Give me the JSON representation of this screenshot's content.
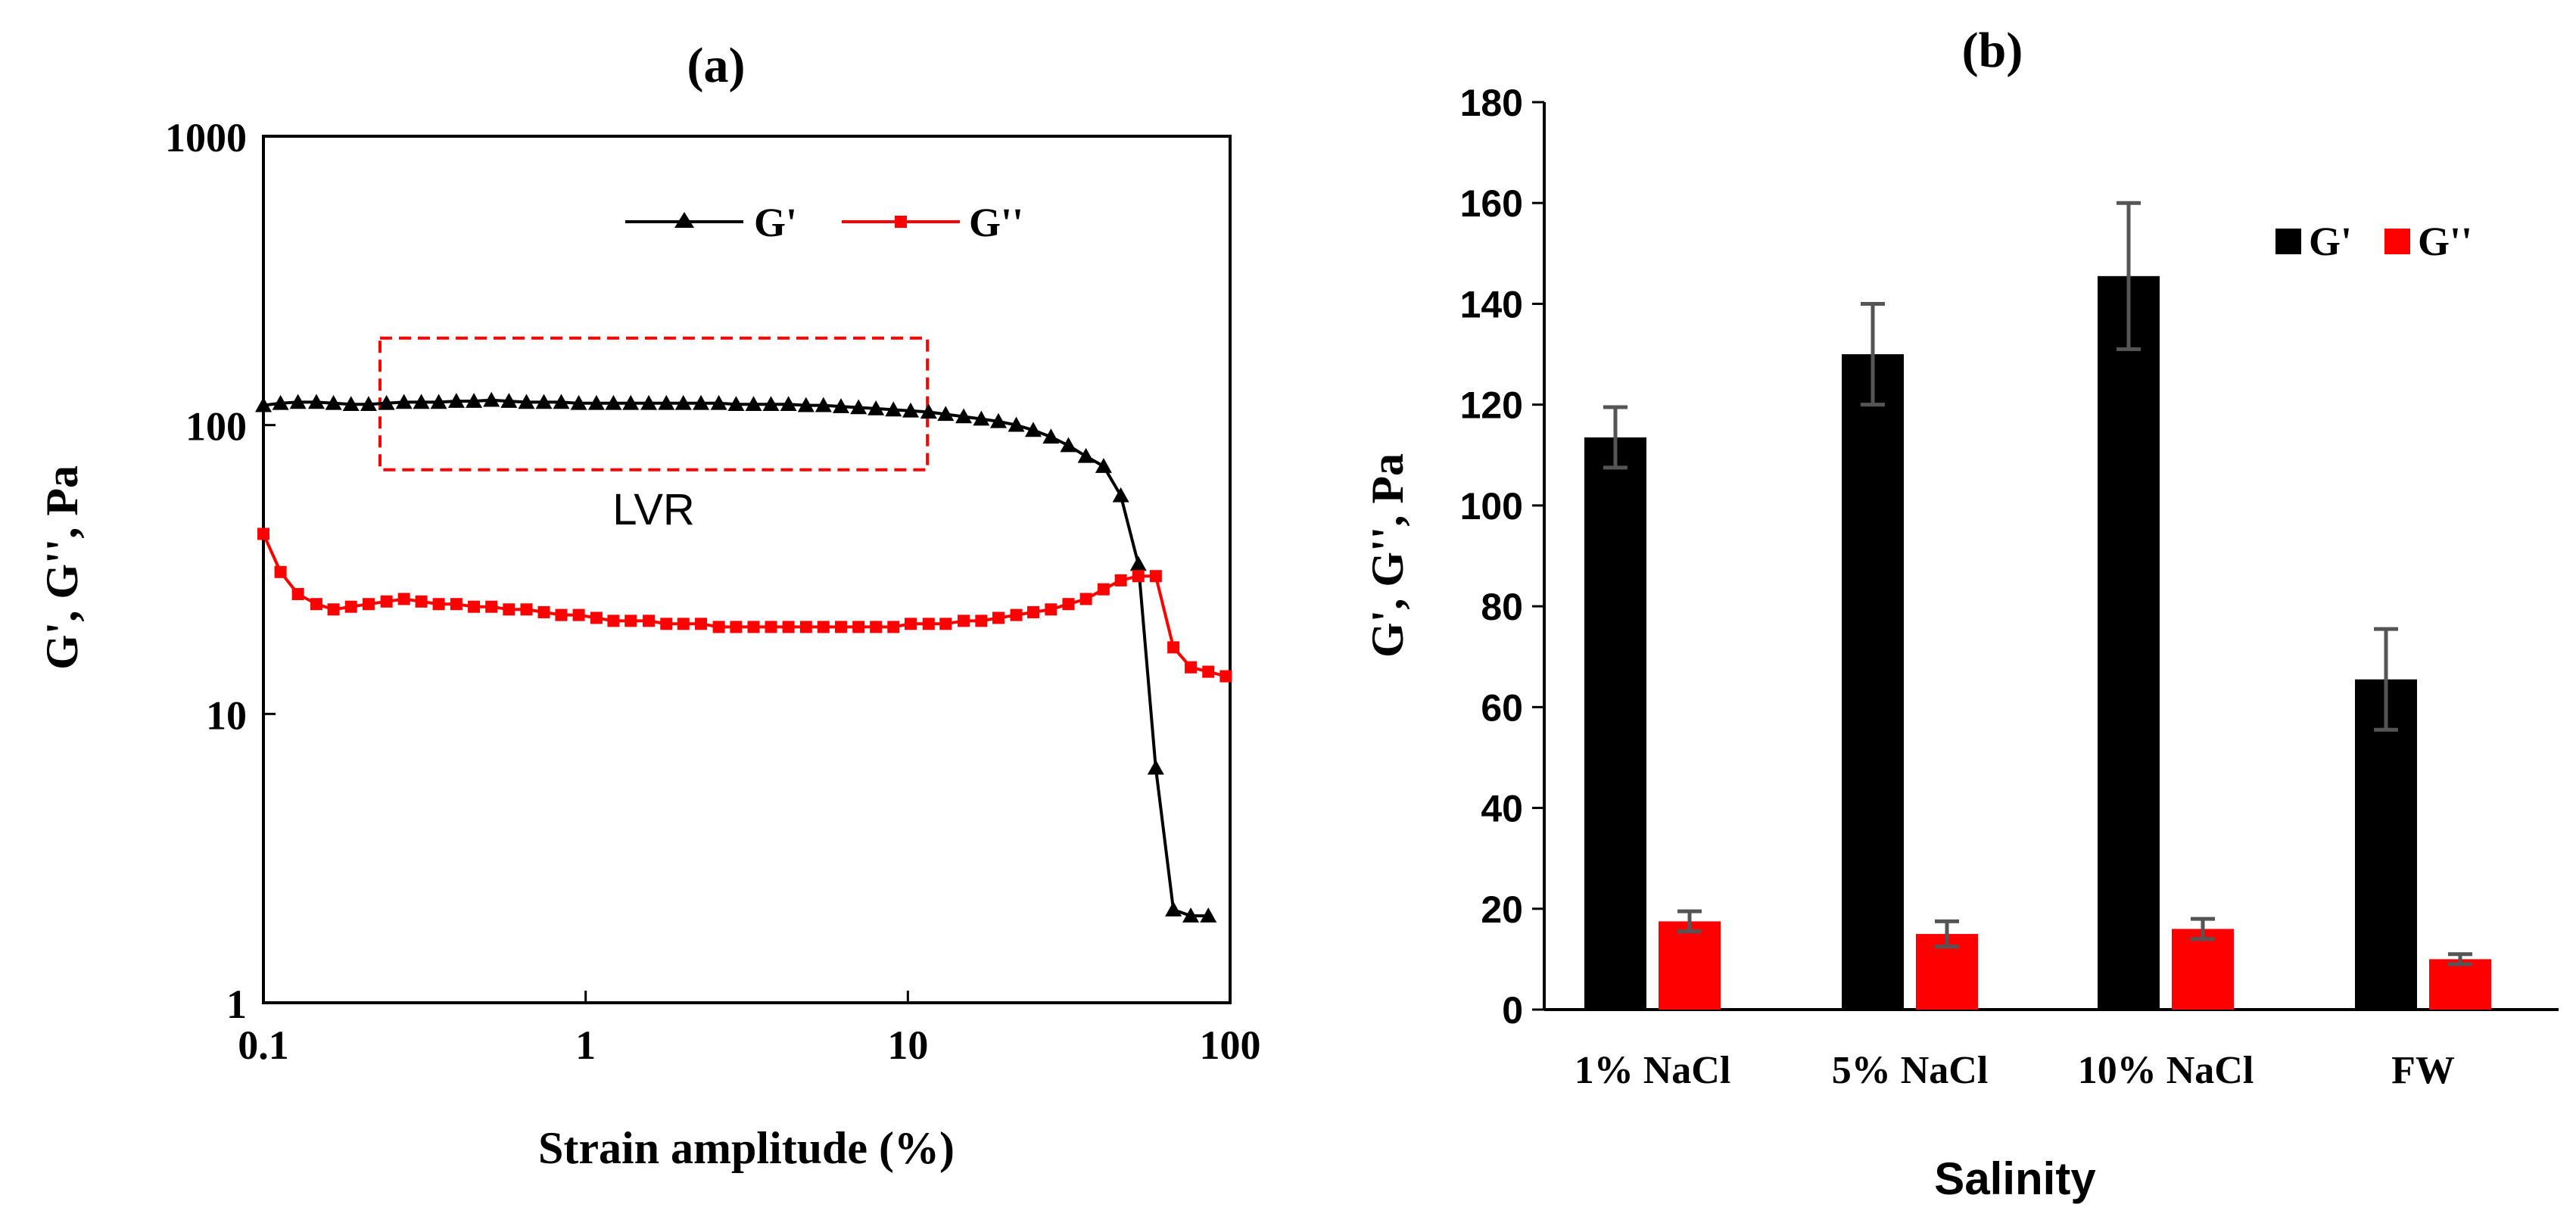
{
  "chart_data": [
    {
      "panel": "(a)",
      "type": "line",
      "title": "(a)",
      "xlabel": "Strain amplitude (%)",
      "ylabel": "G', G'', Pa",
      "xscale": "log",
      "yscale": "log",
      "xlim": [
        0.1,
        100
      ],
      "ylim": [
        1,
        1000
      ],
      "xticks": [
        "0.1",
        "1",
        "10",
        "100"
      ],
      "yticks": [
        "1",
        "10",
        "100",
        "1000"
      ],
      "grid": false,
      "legend_position": "top-right",
      "annotation": {
        "label": "LVR",
        "x_range": [
          0.23,
          11.5
        ],
        "y_range": [
          70,
          200
        ]
      },
      "series": [
        {
          "name": "G'",
          "color": "#000000",
          "marker": "triangle",
          "x": [
            0.1,
            0.113,
            0.128,
            0.146,
            0.165,
            0.187,
            0.212,
            0.241,
            0.273,
            0.309,
            0.35,
            0.397,
            0.45,
            0.51,
            0.578,
            0.655,
            0.742,
            0.84,
            0.952,
            1.08,
            1.22,
            1.38,
            1.57,
            1.78,
            2.01,
            2.28,
            2.59,
            2.93,
            3.32,
            3.76,
            4.26,
            4.83,
            5.47,
            6.2,
            7.03,
            7.96,
            9.02,
            10.2,
            11.6,
            13.1,
            14.9,
            16.9,
            19.1,
            21.7,
            24.5,
            27.8,
            31.5,
            35.7,
            40.5,
            45.8,
            51.9,
            58.8,
            66.7,
            75.5,
            85.6
          ],
          "y": [
            117,
            119,
            120,
            120,
            119,
            118,
            118,
            119,
            120,
            120,
            120,
            121,
            121,
            122,
            121,
            120,
            120,
            120,
            119,
            119,
            119,
            119,
            119,
            119,
            119,
            119,
            119,
            118,
            118,
            118,
            118,
            117,
            117,
            116,
            115,
            114,
            113,
            112,
            111,
            109,
            107,
            105,
            103,
            100,
            96,
            91,
            85,
            78,
            72,
            57,
            33,
            6.5,
            2.1,
            2.0,
            2.0
          ]
        },
        {
          "name": "G''",
          "color": "#ff0000",
          "marker": "square",
          "x": [
            0.1,
            0.113,
            0.128,
            0.146,
            0.165,
            0.187,
            0.212,
            0.241,
            0.273,
            0.309,
            0.35,
            0.397,
            0.45,
            0.51,
            0.578,
            0.655,
            0.742,
            0.84,
            0.952,
            1.08,
            1.22,
            1.38,
            1.57,
            1.78,
            2.01,
            2.28,
            2.59,
            2.93,
            3.32,
            3.76,
            4.26,
            4.83,
            5.47,
            6.2,
            7.03,
            7.96,
            9.02,
            10.2,
            11.6,
            13.1,
            14.9,
            16.9,
            19.1,
            21.7,
            24.5,
            27.8,
            31.5,
            35.7,
            40.5,
            45.8,
            51.9,
            58.8,
            66.7,
            75.5,
            85.6,
            97
          ],
          "y": [
            42,
            31,
            26,
            24,
            23,
            23.5,
            24,
            24.5,
            25,
            24.5,
            24,
            24,
            23.5,
            23.5,
            23,
            23,
            22.5,
            22,
            22,
            21.5,
            21,
            21,
            21,
            20.5,
            20.5,
            20.5,
            20,
            20,
            20,
            20,
            20,
            20,
            20,
            20,
            20,
            20,
            20,
            20.5,
            20.5,
            20.5,
            21,
            21,
            21.5,
            22,
            22.5,
            23,
            24,
            25,
            27,
            29,
            30,
            30,
            17,
            14.5,
            14,
            13.5
          ]
        }
      ]
    },
    {
      "panel": "(b)",
      "type": "bar",
      "title": "(b)",
      "xlabel": "Salinity",
      "ylabel": "G', G'', Pa",
      "categories": [
        "1% NaCl",
        "5% NaCl",
        "10% NaCl",
        "FW"
      ],
      "ylim": [
        0,
        180
      ],
      "yticks": [
        "0",
        "20",
        "40",
        "60",
        "80",
        "100",
        "120",
        "140",
        "160",
        "180"
      ],
      "grid": false,
      "legend_position": "top-right",
      "series": [
        {
          "name": "G'",
          "color": "#000000",
          "values": [
            113.5,
            130,
            145.5,
            65.5
          ],
          "errors": [
            6,
            10,
            14.5,
            10
          ]
        },
        {
          "name": "G''",
          "color": "#ff0000",
          "values": [
            17.5,
            15,
            16,
            10
          ],
          "errors": [
            2,
            2.5,
            2,
            1
          ]
        }
      ]
    }
  ]
}
